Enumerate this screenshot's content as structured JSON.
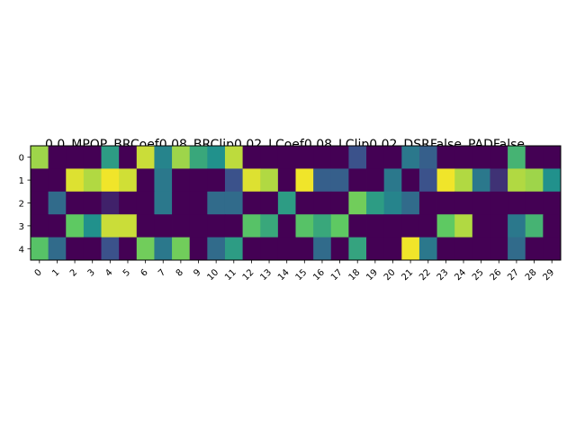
{
  "chart_data": {
    "type": "heatmap",
    "title": "0.0_MPOP_BRCoef0.08_BRClip0.02_LCoef0.08_LClip0.02_DSRFalse_PADFalse_",
    "xlabel": "",
    "ylabel": "",
    "x": [
      0,
      1,
      2,
      3,
      4,
      5,
      6,
      7,
      8,
      9,
      10,
      11,
      12,
      13,
      14,
      15,
      16,
      17,
      18,
      19,
      20,
      21,
      22,
      23,
      24,
      25,
      26,
      27,
      28,
      29
    ],
    "y": [
      0,
      1,
      2,
      3,
      4
    ],
    "colormap": "viridis",
    "value_range": [
      0,
      1
    ],
    "grid": false,
    "values": [
      [
        0.85,
        0.0,
        0.0,
        0.0,
        0.55,
        0.0,
        0.92,
        0.45,
        0.85,
        0.6,
        0.5,
        0.9,
        0.0,
        0.0,
        0.0,
        0.0,
        0.0,
        0.0,
        0.25,
        0.0,
        0.0,
        0.4,
        0.3,
        0.0,
        0.0,
        0.0,
        0.0,
        0.65,
        0.0,
        0.0
      ],
      [
        0.0,
        0.0,
        0.95,
        0.88,
        0.98,
        0.93,
        0.0,
        0.4,
        0.0,
        0.0,
        0.0,
        0.25,
        0.95,
        0.88,
        0.0,
        0.98,
        0.3,
        0.3,
        0.0,
        0.0,
        0.4,
        0.0,
        0.25,
        0.98,
        0.88,
        0.4,
        0.15,
        0.88,
        0.85,
        0.5
      ],
      [
        0.0,
        0.35,
        0.0,
        0.0,
        0.1,
        0.0,
        0.0,
        0.4,
        0.0,
        0.0,
        0.35,
        0.35,
        0.0,
        0.0,
        0.55,
        0.0,
        0.0,
        0.0,
        0.78,
        0.55,
        0.45,
        0.35,
        0.0,
        0.0,
        0.0,
        0.0,
        0.0,
        0.0,
        0.0,
        0.0
      ],
      [
        0.0,
        0.0,
        0.75,
        0.5,
        0.92,
        0.92,
        0.0,
        0.0,
        0.0,
        0.0,
        0.0,
        0.0,
        0.72,
        0.6,
        0.0,
        0.72,
        0.6,
        0.75,
        0.0,
        0.0,
        0.0,
        0.0,
        0.0,
        0.75,
        0.88,
        0.0,
        0.0,
        0.4,
        0.65,
        0.0
      ],
      [
        0.72,
        0.35,
        0.0,
        0.0,
        0.25,
        0.0,
        0.78,
        0.4,
        0.78,
        0.0,
        0.35,
        0.55,
        0.0,
        0.0,
        0.0,
        0.0,
        0.35,
        0.0,
        0.58,
        0.0,
        0.0,
        0.98,
        0.4,
        0.0,
        0.0,
        0.0,
        0.0,
        0.35,
        0.0,
        0.0
      ]
    ]
  }
}
